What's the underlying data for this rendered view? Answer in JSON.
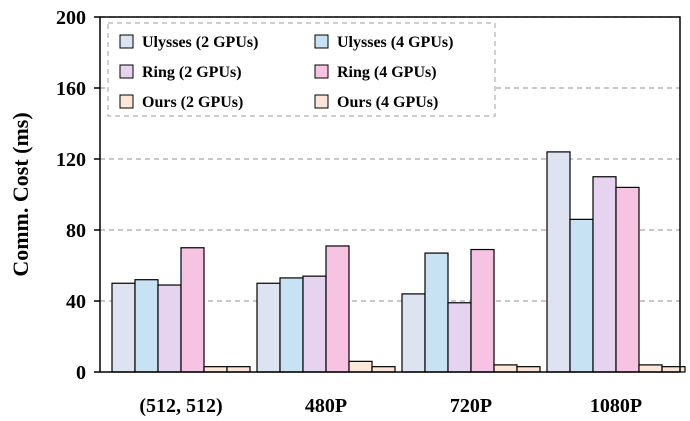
{
  "chart_data": {
    "type": "bar",
    "ylabel": "Comm. Cost (ms)",
    "xlabel": "",
    "ylim": [
      0,
      200
    ],
    "yticks": [
      0,
      40,
      80,
      120,
      160,
      200
    ],
    "grid": "horizontal dashed",
    "legend_position": "top-left",
    "categories": [
      "(512, 512)",
      "480P",
      "720P",
      "1080P"
    ],
    "series": [
      {
        "name": "Ulysses (2 GPUs)",
        "color": "#dde3f0",
        "values": [
          50,
          50,
          44,
          124
        ]
      },
      {
        "name": "Ulysses (4 GPUs)",
        "color": "#c7e2f2",
        "values": [
          52,
          53,
          67,
          86
        ]
      },
      {
        "name": "Ring (2 GPUs)",
        "color": "#e6d3f0",
        "values": [
          49,
          54,
          39,
          110
        ]
      },
      {
        "name": "Ring (4 GPUs)",
        "color": "#f6c3e2",
        "values": [
          70,
          71,
          69,
          104
        ]
      },
      {
        "name": "Ours (2 GPUs)",
        "color": "#fbe8d8",
        "values": [
          3,
          6,
          4,
          4
        ]
      },
      {
        "name": "Ours (4 GPUs)",
        "color": "#fbe4d9",
        "values": [
          3,
          3,
          3,
          3
        ]
      }
    ]
  }
}
